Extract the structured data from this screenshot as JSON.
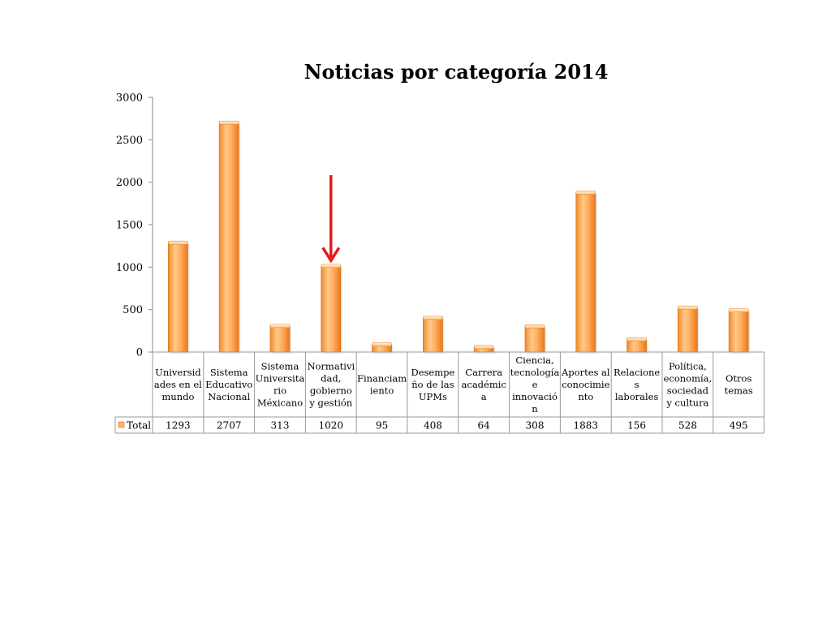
{
  "chart_data": {
    "type": "bar",
    "title": "Noticias por categoría 2014",
    "categories": [
      "Universidades en el mundo",
      "Sistema Educativo Nacional",
      "Sistema Universitario Méxicano",
      "Normatividad, gobierno y gestión",
      "Financiamiento",
      "Desempeño de las UPMs",
      "Carrera académica",
      "Ciencia, tecnología e innovación",
      "Aportes al conocimiento",
      "Relaciones laborales",
      "Política, economía, sociedad y cultura",
      "Otros temas"
    ],
    "category_lines": [
      [
        "Universid",
        "ades en el",
        "mundo"
      ],
      [
        "Sistema",
        "Educativo",
        "Nacional"
      ],
      [
        "Sistema",
        "Universita",
        "rio",
        "Méxicano"
      ],
      [
        "Normativi",
        "dad,",
        "gobierno",
        "y gestión"
      ],
      [
        "Financiam",
        "iento"
      ],
      [
        "Desempe",
        "ño de las",
        "UPMs"
      ],
      [
        "Carrera",
        "académic",
        "a"
      ],
      [
        "Ciencia,",
        "tecnología",
        "e",
        "innovació",
        "n"
      ],
      [
        "Aportes al",
        "conocimie",
        "nto"
      ],
      [
        "Relacione",
        "s",
        "laborales"
      ],
      [
        "Política,",
        "economía,",
        "sociedad",
        "y cultura"
      ],
      [
        "Otros",
        "temas"
      ]
    ],
    "series": [
      {
        "name": "Total",
        "values": [
          1293,
          2707,
          313,
          1020,
          95,
          408,
          64,
          308,
          1883,
          156,
          528,
          495
        ]
      }
    ],
    "ylim": [
      0,
      3000
    ],
    "yticks": [
      0,
      500,
      1000,
      1500,
      2000,
      2500,
      3000
    ],
    "grid": false,
    "legend": "data-table",
    "annotation": "red arrow pointing to Normatividad, gobierno y gestión bar",
    "colors": {
      "bar_light": "#FFD9A8",
      "bar_mid": "#FDB46B",
      "bar_dark": "#F08A2A",
      "axis": "#878787",
      "arrow": "#E01B1B"
    }
  }
}
